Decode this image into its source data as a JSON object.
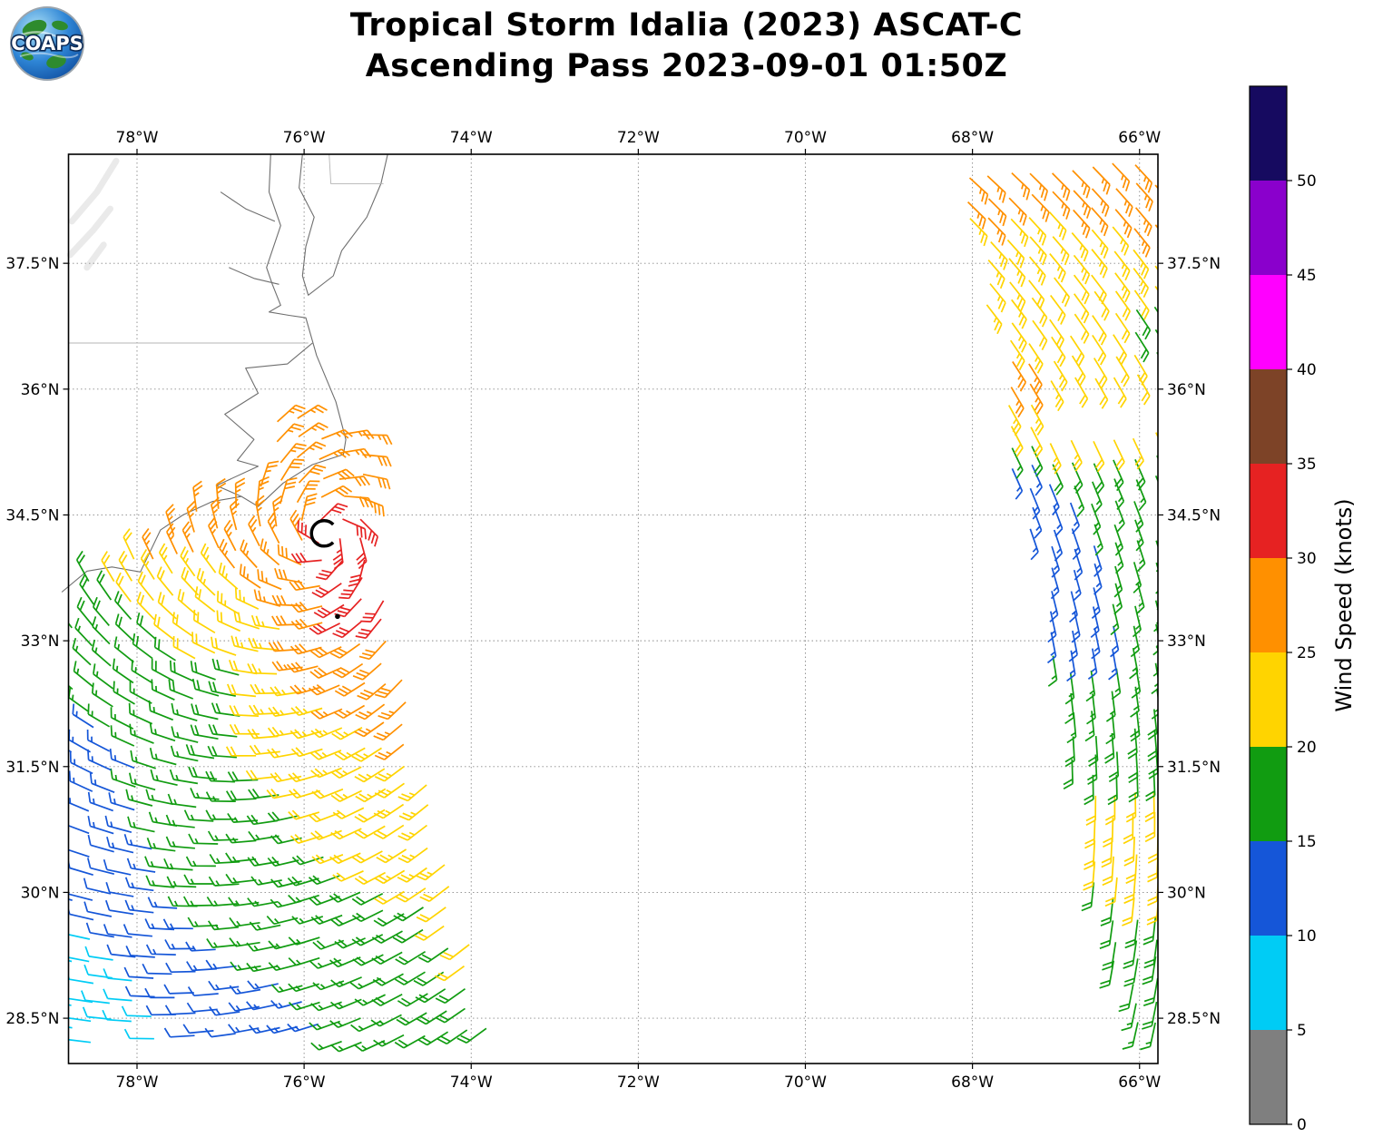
{
  "logo": {
    "text": "COAPS"
  },
  "title": {
    "line1": "Tropical Storm Idalia (2023) ASCAT-C",
    "line2": "Ascending Pass 2023-09-01 01:50Z"
  },
  "chart_data": {
    "type": "map-windbarbs",
    "projection": "plate-carree",
    "lon_range": [
      -78.82,
      -65.78
    ],
    "lat_range": [
      27.96,
      38.8
    ],
    "axes": {
      "lon_ticks": [
        {
          "value": -78,
          "label": "78°W"
        },
        {
          "value": -76,
          "label": "76°W"
        },
        {
          "value": -74,
          "label": "74°W"
        },
        {
          "value": -72,
          "label": "72°W"
        },
        {
          "value": -70,
          "label": "70°W"
        },
        {
          "value": -68,
          "label": "68°W"
        },
        {
          "value": -66,
          "label": "66°W"
        }
      ],
      "lat_ticks": [
        {
          "value": 37.5,
          "label": "37.5°N"
        },
        {
          "value": 36,
          "label": "36°N"
        },
        {
          "value": 34.5,
          "label": "34.5°N"
        },
        {
          "value": 33,
          "label": "33°N"
        },
        {
          "value": 31.5,
          "label": "31.5°N"
        },
        {
          "value": 30,
          "label": "30°N"
        },
        {
          "value": 28.5,
          "label": "28.5°N"
        }
      ],
      "grid": "dashed-gray"
    },
    "colorbar": {
      "label": "Wind Speed (knots)",
      "ticks": [
        0,
        5,
        10,
        15,
        20,
        25,
        30,
        35,
        40,
        45,
        50
      ],
      "bands": [
        {
          "min": 0,
          "max": 5,
          "color": "#7f7f7f"
        },
        {
          "min": 5,
          "max": 10,
          "color": "#00ccf5"
        },
        {
          "min": 10,
          "max": 15,
          "color": "#1556d8"
        },
        {
          "min": 15,
          "max": 20,
          "color": "#119c11"
        },
        {
          "min": 20,
          "max": 25,
          "color": "#ffd400"
        },
        {
          "min": 25,
          "max": 30,
          "color": "#ff9000"
        },
        {
          "min": 30,
          "max": 35,
          "color": "#e62222"
        },
        {
          "min": 35,
          "max": 40,
          "color": "#7d4327"
        },
        {
          "min": 40,
          "max": 45,
          "color": "#ff00ff"
        },
        {
          "min": 45,
          "max": 50,
          "color": "#8a00cc"
        },
        {
          "min": 50,
          "max": 55,
          "color": "#160a60"
        }
      ]
    },
    "storm_center": {
      "lon": -75.76,
      "lat": 34.28,
      "marker": "open-circle-C"
    },
    "point_marker": {
      "lon": -75.6,
      "lat": 33.29
    },
    "wind_field": {
      "units": "knots",
      "circulation": "counterclockwise",
      "vortex": {
        "center_lon": -75.72,
        "center_lat": 34.25,
        "inflow": 0.33
      },
      "barb_spacing_deg": 0.25,
      "row_slant_deg_per_lon": 0.09,
      "control_points": [
        [
          -75.6,
          34.25,
          33
        ],
        [
          -75.35,
          33.35,
          32
        ],
        [
          -75.1,
          33.9,
          30
        ],
        [
          -75.95,
          33.1,
          30
        ],
        [
          -75.75,
          32.6,
          29
        ],
        [
          -76.15,
          34.6,
          28
        ],
        [
          -76.9,
          34.35,
          27
        ],
        [
          -77.6,
          34.05,
          26
        ],
        [
          -78.3,
          33.8,
          21
        ],
        [
          -78.7,
          33.5,
          17
        ],
        [
          -76.25,
          35.3,
          27
        ],
        [
          -75.6,
          35.6,
          26
        ],
        [
          -75.3,
          35.1,
          28
        ],
        [
          -74.6,
          33.0,
          27
        ],
        [
          -74.35,
          31.6,
          27
        ],
        [
          -74.45,
          31.05,
          25
        ],
        [
          -74.55,
          30.45,
          24
        ],
        [
          -74.05,
          30.2,
          22
        ],
        [
          -73.85,
          29.0,
          20
        ],
        [
          -74.9,
          29.6,
          18
        ],
        [
          -75.4,
          28.6,
          16
        ],
        [
          -76.3,
          28.4,
          13
        ],
        [
          -77.3,
          28.45,
          11
        ],
        [
          -78.3,
          28.3,
          8
        ],
        [
          -78.6,
          29.0,
          9
        ],
        [
          -78.6,
          30.2,
          11
        ],
        [
          -78.55,
          31.5,
          13
        ],
        [
          -78.25,
          32.6,
          15
        ],
        [
          -77.4,
          31.9,
          16
        ],
        [
          -76.7,
          30.7,
          16
        ],
        [
          -75.95,
          29.9,
          17
        ],
        [
          -76.9,
          32.3,
          18
        ],
        [
          -76.1,
          31.4,
          20
        ],
        [
          -75.3,
          30.5,
          20
        ],
        [
          -76.55,
          33.1,
          22
        ],
        [
          -77.6,
          33.35,
          20
        ],
        [
          -75.95,
          32.3,
          24
        ],
        [
          -75.2,
          31.6,
          23
        ],
        [
          -74.7,
          30.9,
          22
        ],
        [
          -76.6,
          33.95,
          25
        ],
        [
          -75.0,
          32.6,
          28
        ],
        [
          -74.55,
          32.0,
          26
        ],
        [
          -67.6,
          38.7,
          27
        ],
        [
          -66.5,
          38.55,
          27
        ],
        [
          -65.9,
          38.2,
          26
        ],
        [
          -67.2,
          37.9,
          25
        ],
        [
          -67.0,
          37.3,
          22
        ],
        [
          -66.1,
          37.4,
          23
        ],
        [
          -65.9,
          36.8,
          18
        ],
        [
          -66.6,
          36.8,
          20
        ],
        [
          -67.3,
          36.1,
          26
        ],
        [
          -66.4,
          36.2,
          22
        ],
        [
          -65.9,
          35.85,
          21
        ],
        [
          -66.9,
          35.4,
          25
        ],
        [
          -66.3,
          35.55,
          22
        ],
        [
          -67.3,
          35.0,
          14
        ],
        [
          -67.1,
          34.6,
          13
        ],
        [
          -66.6,
          34.9,
          16
        ],
        [
          -65.9,
          34.7,
          15
        ],
        [
          -66.85,
          33.9,
          13
        ],
        [
          -66.25,
          33.95,
          16
        ],
        [
          -65.95,
          33.4,
          16
        ],
        [
          -66.55,
          33.1,
          14
        ],
        [
          -66.35,
          32.3,
          17
        ],
        [
          -65.95,
          31.9,
          18
        ],
        [
          -66.45,
          31.2,
          20
        ],
        [
          -66.1,
          30.9,
          21
        ],
        [
          -66.3,
          30.3,
          20
        ],
        [
          -65.95,
          30.1,
          21
        ],
        [
          -66.25,
          29.6,
          18
        ],
        [
          -66.0,
          29.2,
          20
        ],
        [
          -66.15,
          28.6,
          17
        ]
      ],
      "swaths": [
        {
          "name": "west",
          "lat_min": 28.15,
          "lat_max": 35.72,
          "lon_start": -78.8,
          "cols": 21,
          "rows": 31,
          "west_edge": [
            [
              28.0,
              -78.8
            ],
            [
              33.62,
              -78.8
            ],
            [
              33.85,
              -78.5
            ],
            [
              34.05,
              -78.05
            ],
            [
              34.3,
              -77.68
            ],
            [
              34.55,
              -77.28
            ],
            [
              34.72,
              -76.88
            ],
            [
              35.0,
              -76.52
            ],
            [
              35.75,
              -76.45
            ]
          ],
          "east_edge": [
            [
              28.05,
              -73.7
            ],
            [
              30.0,
              -74.2
            ],
            [
              31.5,
              -74.55
            ],
            [
              33.0,
              -74.85
            ],
            [
              34.0,
              -75.15
            ],
            [
              34.8,
              -75.25
            ],
            [
              35.75,
              -75.18
            ]
          ]
        },
        {
          "name": "east",
          "lat_min": 28.35,
          "lat_max": 38.78,
          "lon_start": -68.3,
          "cols": 11,
          "rows": 42,
          "west_edge_linear": {
            "lat_ref": 28.5,
            "lon_at_ref": -66.25,
            "slope_per_deg": -0.19
          },
          "east_limit": -65.72,
          "gap": {
            "lat_min": 35.5,
            "lat_max": 36.05,
            "lon_min": -67.18
          }
        }
      ]
    },
    "map": {
      "coastlines": [
        [
          [
            -75.0,
            38.8
          ],
          [
            -75.08,
            38.45
          ],
          [
            -75.25,
            38.05
          ],
          [
            -75.55,
            37.65
          ],
          [
            -75.65,
            37.35
          ],
          [
            -75.95,
            37.12
          ],
          [
            -76.02,
            37.35
          ],
          [
            -75.98,
            37.7
          ],
          [
            -75.88,
            38.05
          ],
          [
            -76.06,
            38.4
          ],
          [
            -76.02,
            38.8
          ]
        ],
        [
          [
            -76.4,
            38.8
          ],
          [
            -76.42,
            38.35
          ],
          [
            -76.28,
            37.95
          ],
          [
            -76.45,
            37.45
          ],
          [
            -76.38,
            37.25
          ],
          [
            -76.28,
            37.0
          ],
          [
            -76.42,
            36.92
          ],
          [
            -76.18,
            36.88
          ],
          [
            -75.98,
            36.85
          ],
          [
            -75.85,
            36.4
          ],
          [
            -75.62,
            35.85
          ],
          [
            -75.5,
            35.4
          ],
          [
            -75.53,
            35.22
          ],
          [
            -75.9,
            35.1
          ],
          [
            -76.25,
            34.88
          ],
          [
            -76.55,
            34.6
          ],
          [
            -76.75,
            34.72
          ],
          [
            -77.1,
            34.66
          ],
          [
            -77.45,
            34.5
          ],
          [
            -77.72,
            34.32
          ],
          [
            -77.96,
            33.82
          ],
          [
            -78.3,
            33.88
          ],
          [
            -78.6,
            33.83
          ],
          [
            -78.9,
            33.58
          ]
        ],
        [
          [
            -75.9,
            36.55
          ],
          [
            -76.2,
            36.3
          ],
          [
            -76.7,
            36.25
          ],
          [
            -76.55,
            35.95
          ],
          [
            -76.95,
            35.7
          ],
          [
            -76.6,
            35.4
          ],
          [
            -76.8,
            35.15
          ],
          [
            -76.55,
            35.08
          ],
          [
            -77.05,
            34.85
          ],
          [
            -76.75,
            34.72
          ]
        ],
        [
          [
            -76.3,
            37.25
          ],
          [
            -76.6,
            37.32
          ],
          [
            -76.9,
            37.45
          ]
        ],
        [
          [
            -76.35,
            38.0
          ],
          [
            -76.7,
            38.15
          ],
          [
            -77.0,
            38.35
          ]
        ]
      ],
      "borders": [
        [
          [
            -78.82,
            36.55
          ],
          [
            -75.95,
            36.55
          ]
        ],
        [
          [
            -75.7,
            38.8
          ],
          [
            -75.68,
            38.45
          ],
          [
            -75.05,
            38.45
          ]
        ]
      ],
      "terrain_shading": [
        [
          [
            -78.78,
            38.0
          ],
          [
            -78.48,
            38.35
          ],
          [
            -78.25,
            38.72
          ]
        ],
        [
          [
            -78.8,
            37.6
          ],
          [
            -78.52,
            37.9
          ],
          [
            -78.32,
            38.15
          ]
        ],
        [
          [
            -78.6,
            37.45
          ],
          [
            -78.4,
            37.72
          ]
        ]
      ]
    }
  }
}
